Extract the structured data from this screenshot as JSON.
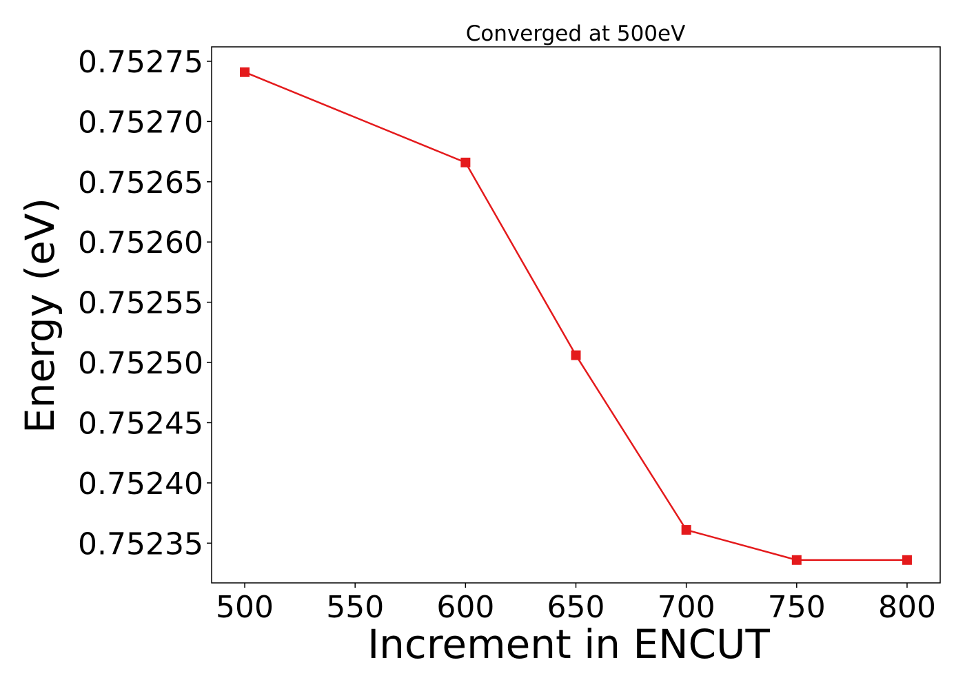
{
  "chart_data": {
    "type": "line",
    "title": "Converged at 500eV",
    "xlabel": "Increment in ENCUT",
    "ylabel": "Energy (eV)",
    "x": [
      500,
      600,
      650,
      700,
      750,
      800
    ],
    "series": [
      {
        "values": [
          0.752741,
          0.752666,
          0.752506,
          0.752361,
          0.752336,
          0.752336
        ],
        "color": "#e41a1c",
        "marker": "square"
      }
    ],
    "xlim": [
      485,
      815
    ],
    "ylim": [
      0.752317,
      0.752762
    ],
    "xticks": [
      500,
      550,
      600,
      650,
      700,
      750,
      800
    ],
    "xtick_labels": [
      "500",
      "550",
      "600",
      "650",
      "700",
      "750",
      "800"
    ],
    "yticks": [
      0.75235,
      0.7524,
      0.75245,
      0.7525,
      0.75255,
      0.7526,
      0.75265,
      0.7527,
      0.75275
    ],
    "ytick_labels": [
      "0.75235",
      "0.75240",
      "0.75245",
      "0.75250",
      "0.75255",
      "0.75260",
      "0.75265",
      "0.75270",
      "0.75275"
    ],
    "grid": false,
    "legend": "none"
  }
}
